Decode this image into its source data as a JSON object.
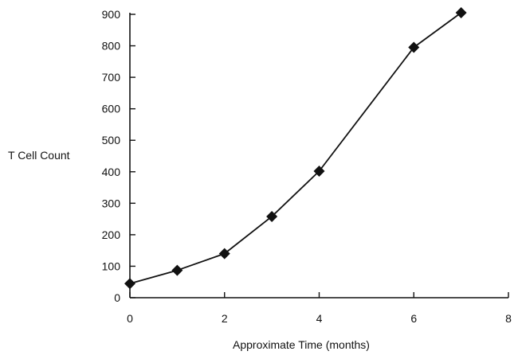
{
  "chart_data": {
    "type": "line",
    "title": "",
    "xlabel": "Approximate Time   (months)",
    "ylabel": "T Cell  Count",
    "xlim": [
      0,
      8
    ],
    "ylim": [
      0,
      900
    ],
    "x_ticks": [
      "0",
      "2",
      "4",
      "6",
      "8"
    ],
    "y_ticks": [
      "0",
      "100",
      "200",
      "300",
      "400",
      "500",
      "600",
      "700",
      "800",
      "900"
    ],
    "grid": false,
    "legend": "none",
    "marker": "diamond",
    "color": "#111111",
    "series": [
      {
        "x": [
          0,
          1,
          2,
          3,
          4,
          6,
          7
        ],
        "y": [
          45,
          87,
          140,
          258,
          402,
          795,
          905
        ]
      }
    ]
  }
}
